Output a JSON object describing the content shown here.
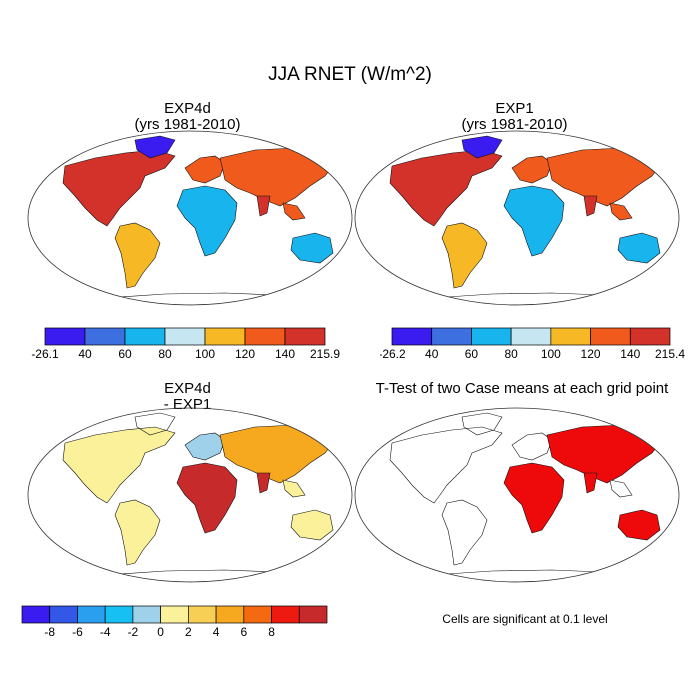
{
  "figure": {
    "title": "JJA RNET (W/m^2)",
    "panels": {
      "top_left": {
        "title_line1": "EXP4d",
        "title_line2": "(yrs 1981-2010)"
      },
      "top_right": {
        "title_line1": "EXP1",
        "title_line2": "(yrs 1981-2010)"
      },
      "bottom_left": {
        "title_line1": "EXP4d",
        "title_line2": "- EXP1"
      },
      "bottom_right": {
        "title_line1": "T-Test of two Case means at each grid point"
      }
    },
    "note": "Cells are significant at 0.1 level"
  },
  "colorbars": {
    "exp4d": {
      "labels": [
        "-26.1",
        "40",
        "60",
        "80",
        "100",
        "120",
        "140",
        "215.9"
      ],
      "colors": [
        "#3a1cf0",
        "#3d6fe0",
        "#17b4ee",
        "#c6e6f2",
        "#f6b824",
        "#f05a1c",
        "#d2322a"
      ]
    },
    "exp1": {
      "labels": [
        "-26.2",
        "40",
        "60",
        "80",
        "100",
        "120",
        "140",
        "215.4"
      ],
      "colors": [
        "#3a1cf0",
        "#3d6fe0",
        "#17b4ee",
        "#c6e6f2",
        "#f6b824",
        "#f05a1c",
        "#d2322a"
      ]
    },
    "diff": {
      "labels": [
        "-8",
        "-6",
        "-4",
        "-2",
        "0",
        "2",
        "4",
        "6",
        "8"
      ],
      "colors": [
        "#3a1cf0",
        "#3357e6",
        "#2a9ff0",
        "#17c0f2",
        "#9fd2ea",
        "#fbf19a",
        "#f8cf55",
        "#f6a81e",
        "#f56a10",
        "#ee1a10",
        "#c62a2a"
      ]
    }
  },
  "map_colors": {
    "high": "#d2322a",
    "mid_high": "#f05a1c",
    "mid": "#f6b824",
    "low": "#c6e6f2",
    "lower": "#17b4ee",
    "lowest": "#3a1cf0",
    "diff_pos_strong": "#c62a2a",
    "diff_pos": "#f6a81e",
    "diff_neutral": "#fbf19a",
    "diff_neg": "#9fd2ea",
    "significant": "#ee0a0a"
  }
}
